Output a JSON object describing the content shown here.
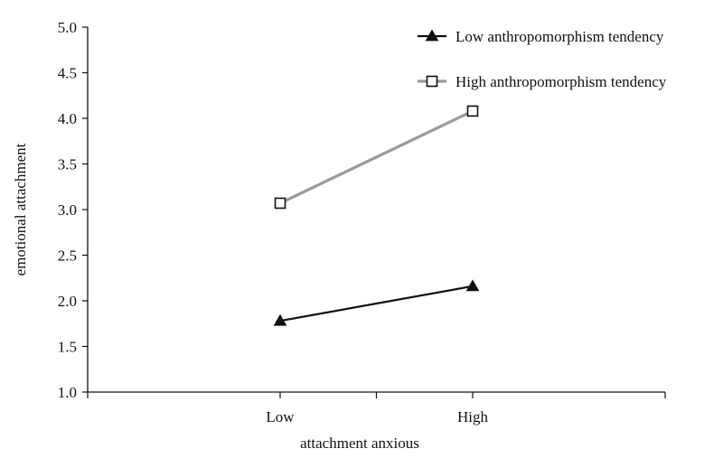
{
  "chart_data": {
    "type": "line",
    "xlabel": "attachment anxious",
    "ylabel": "emotional attachment",
    "categories": [
      "Low",
      "High"
    ],
    "ylim": [
      1.0,
      5.0
    ],
    "yticks": [
      "1.0",
      "1.5",
      "2.0",
      "2.5",
      "3.0",
      "3.5",
      "4.0",
      "4.5",
      "5.0"
    ],
    "grid": false,
    "legend_position": "top-right",
    "series": [
      {
        "name": "Low anthropomorphism tendency",
        "values": [
          1.78,
          2.16
        ],
        "color": "#111111",
        "marker": "filled-triangle"
      },
      {
        "name": "High anthropomorphism tendency",
        "values": [
          3.07,
          4.08
        ],
        "color": "#9a9a9a",
        "marker": "hollow-square"
      }
    ]
  }
}
